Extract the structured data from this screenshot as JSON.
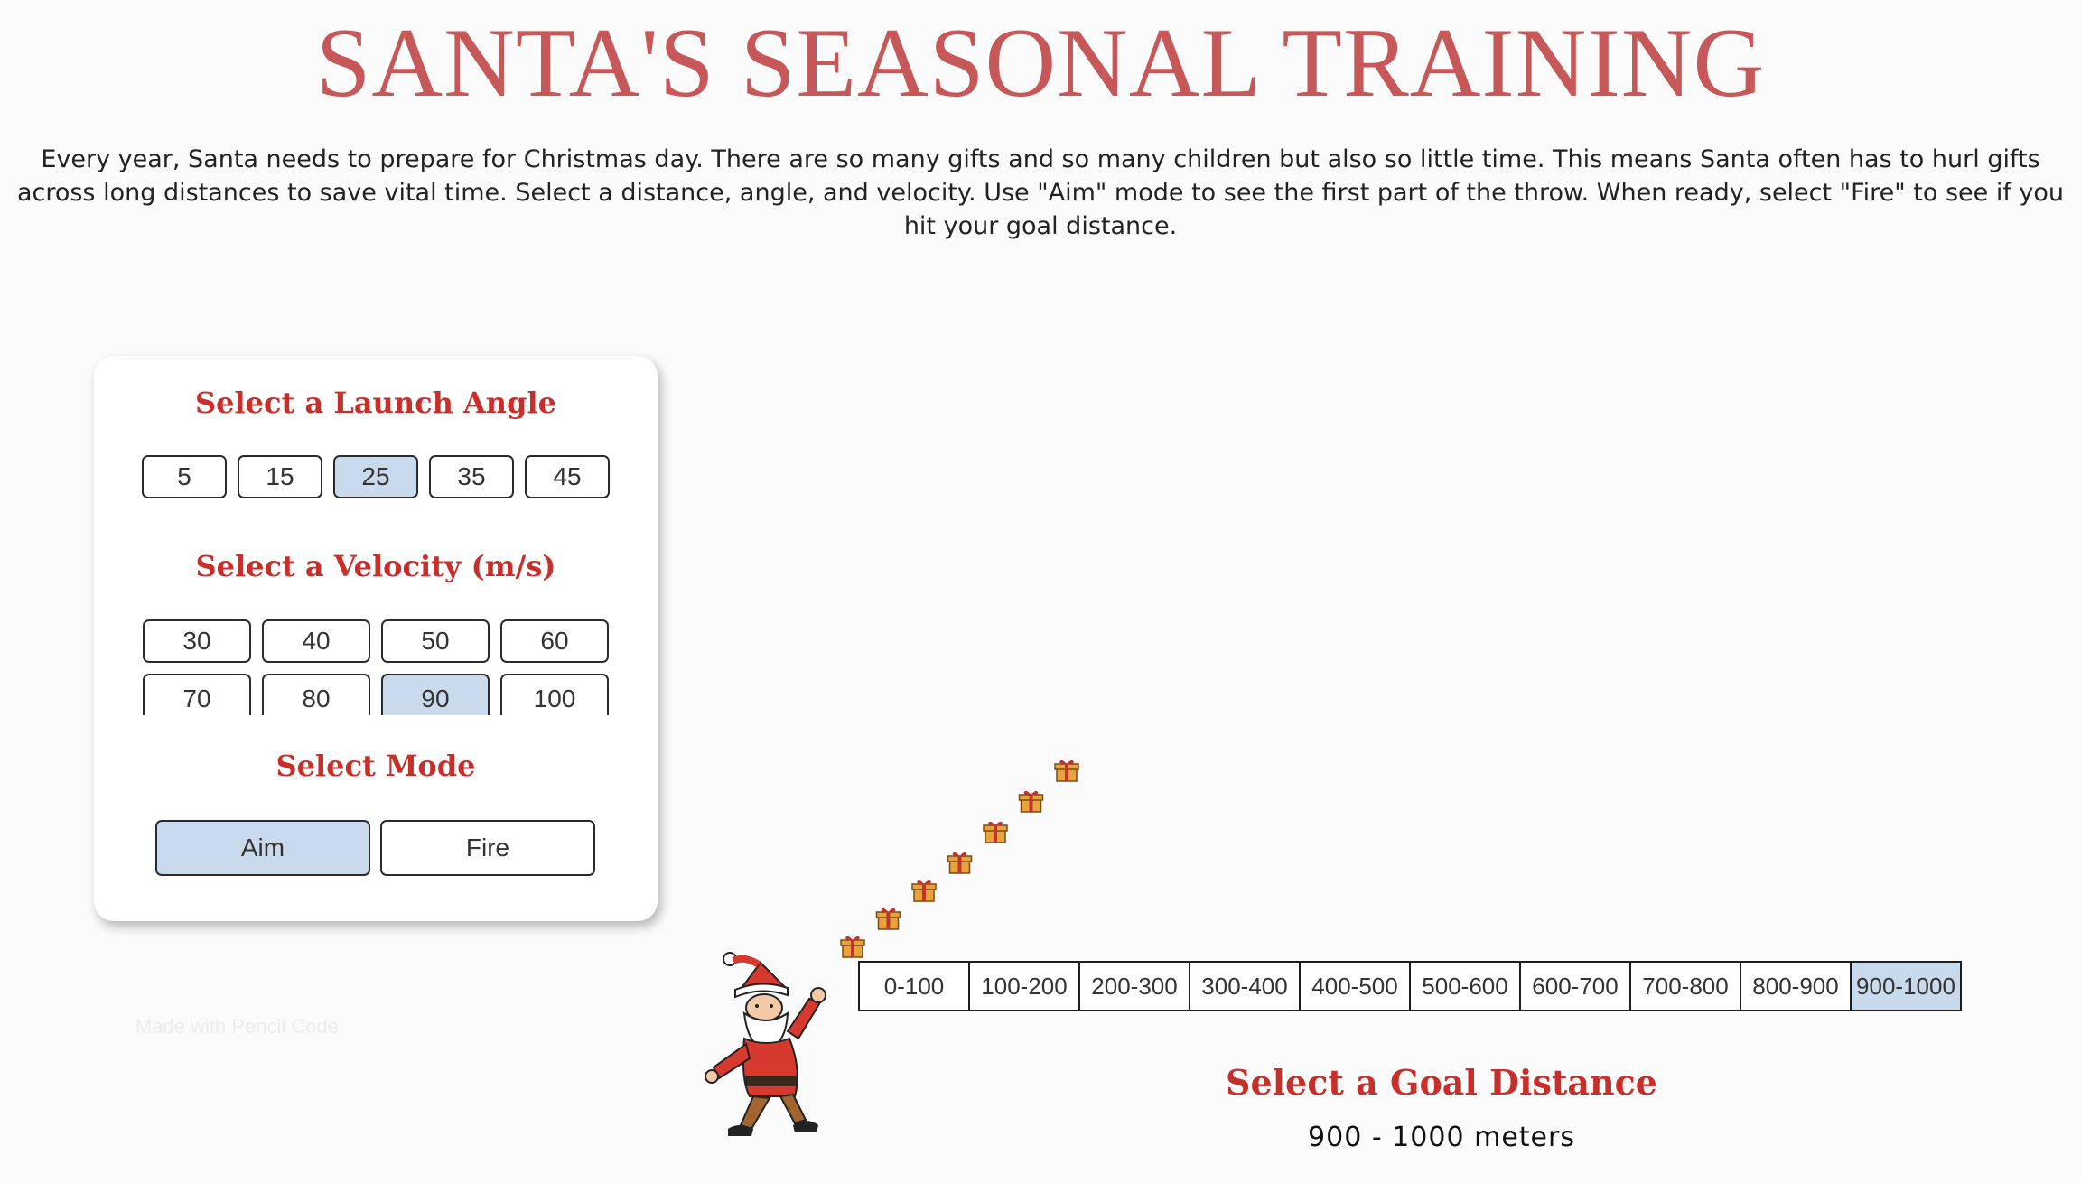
{
  "title": "SANTA'S SEASONAL TRAINING",
  "intro": "Every year, Santa needs to prepare for Christmas day.  There are so many gifts and so many children but also so little time.  This means Santa often has to hurl gifts across long distances to save vital time.  Select a distance, angle, and velocity.  Use \"Aim\" mode to see the first part of the throw.  When ready, select \"Fire\" to see if you hit your goal distance.",
  "controls": {
    "angle_heading": "Select a Launch Angle",
    "angles": [
      "5",
      "15",
      "25",
      "35",
      "45"
    ],
    "selected_angle": "25",
    "velocity_heading": "Select a Velocity (m/s)",
    "velocities": [
      "30",
      "40",
      "50",
      "60",
      "70",
      "80",
      "90",
      "100"
    ],
    "selected_velocity": "90",
    "mode_heading": "Select Mode",
    "modes": [
      "Aim",
      "Fire"
    ],
    "selected_mode": "Aim"
  },
  "faint_text": "Made with Pencil Code",
  "goal": {
    "distances": [
      "0-100",
      "100-200",
      "200-300",
      "300-400",
      "400-500",
      "500-600",
      "600-700",
      "700-800",
      "800-900",
      "900-1000"
    ],
    "selected": "900-1000",
    "heading": "Select a Goal Distance",
    "value": "900 - 1000 meters"
  },
  "gift_count": 7,
  "colors": {
    "title": "#c75859",
    "heading": "#c72f2a",
    "selected": "#c8daeb",
    "gift_box": "#e8a33a",
    "gift_ribbon": "#c0352b"
  },
  "icons": {
    "character": "santa-figure",
    "projectile": "gift-icon"
  }
}
